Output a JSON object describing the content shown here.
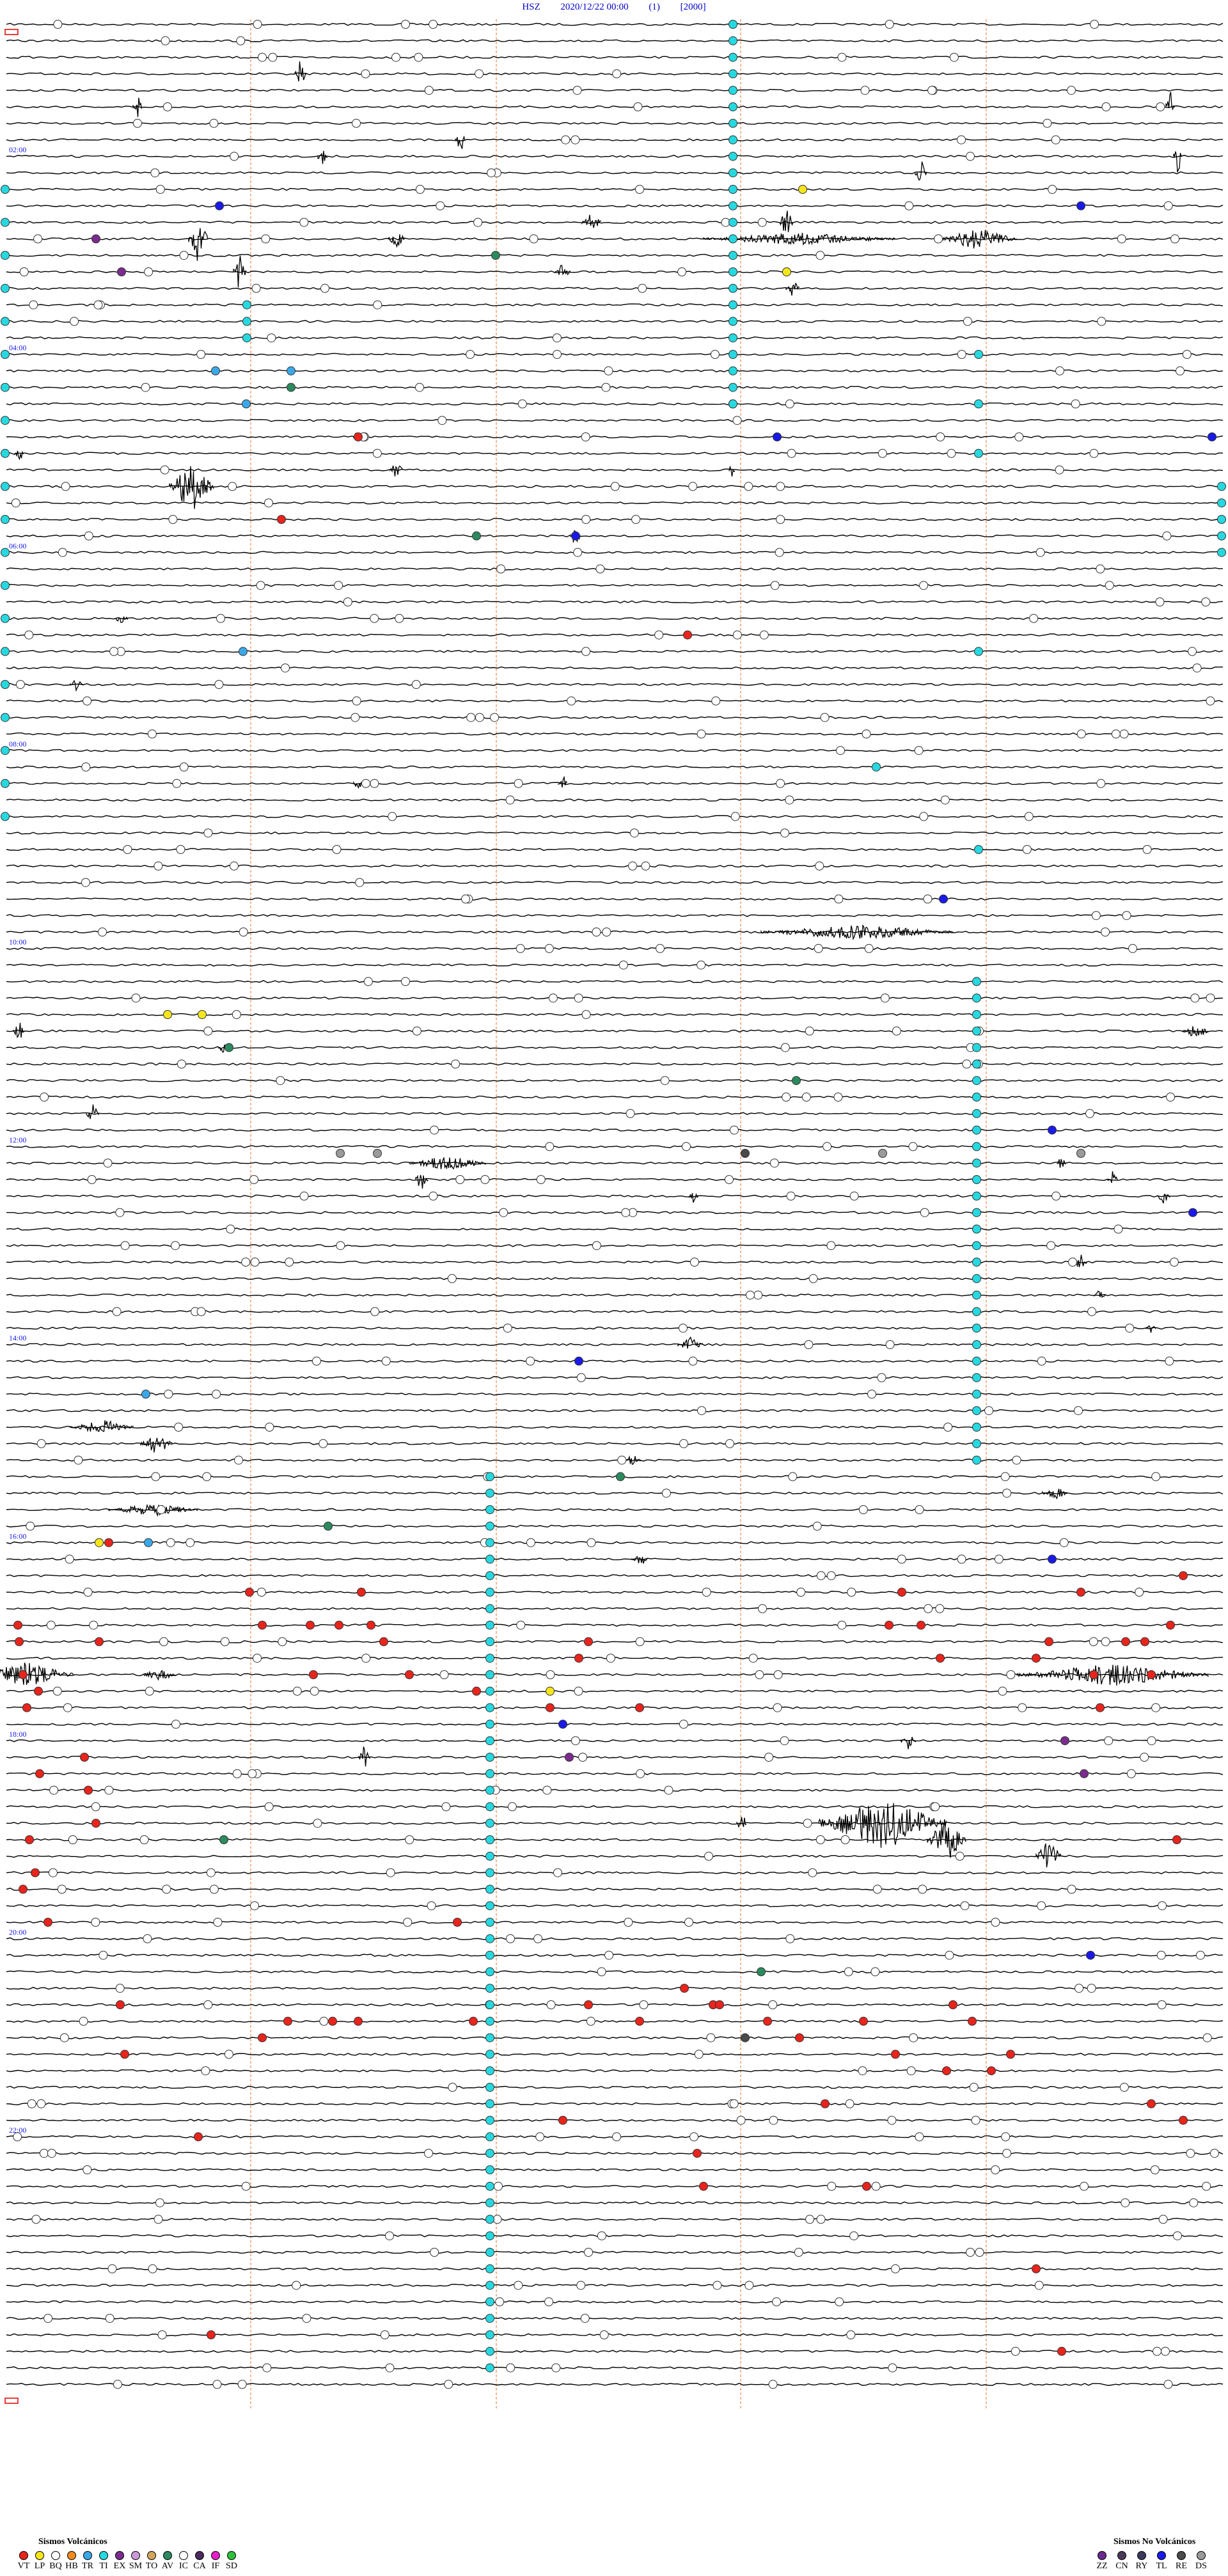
{
  "header": {
    "station": "HSZ",
    "datetime": "2020/12/22 00:00",
    "channel": "(1)",
    "scale": "[2000]"
  },
  "chart_data": {
    "type": "helicorder",
    "hour_labels": [
      "02:00",
      "04:00",
      "06:00",
      "08:00",
      "10:00",
      "12:00",
      "14:00",
      "16:00",
      "18:00",
      "20:00",
      "22:00"
    ],
    "trace_rows": 144,
    "marker_colors": {
      "VT": "#e8241c",
      "LP": "#f5e61a",
      "BQ": "#ffffff",
      "HB": "#f28a1e",
      "TR": "#3aa8e8",
      "TI": "#26d9e0",
      "EX": "#7b2b8e",
      "SM": "#c99ad6",
      "TO": "#d4a55a",
      "AV": "#2b8a5e",
      "IC": "#ffffff",
      "CA": "#4a2a5e",
      "IF": "#e81ec8",
      "SD": "#2ec23a",
      "ZZ": "#6a2a8a",
      "CN": "#4a3a5a",
      "RY": "#3a3a5a",
      "TL": "#1a1ae8",
      "RE": "#4a4a4a",
      "DS": "#9a9a9a"
    }
  },
  "legend_volcanic": {
    "title": "Sismos Volcánicos",
    "items": [
      "VT",
      "LP",
      "BQ",
      "HB",
      "TR",
      "TI",
      "EX",
      "SM",
      "TO",
      "AV",
      "IC",
      "CA",
      "IF",
      "SD"
    ]
  },
  "legend_nonvolcanic": {
    "title": "Sismos No Volcánicos",
    "items": [
      "ZZ",
      "CN",
      "RY",
      "TL",
      "RE",
      "DS"
    ]
  }
}
